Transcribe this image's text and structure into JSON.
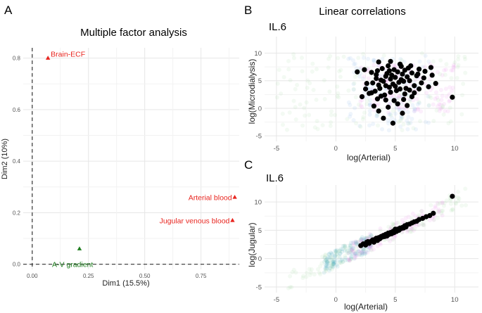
{
  "panel_labels": {
    "a": "A",
    "b": "B",
    "c": "C"
  },
  "colors": {
    "red": "#e8251f",
    "green": "#1e7d1e",
    "black": "#000000",
    "grid": "#e6e6e6",
    "blue_cloud": "#7fb0e6",
    "pink_cloud": "#e37be3",
    "green_cloud": "#9fd39a",
    "teal_cloud": "#39a5b5"
  },
  "chart_data": [
    {
      "type": "scatter",
      "title": "Multiple factor analysis",
      "xlabel": "Dim1 (15.5%)",
      "ylabel": "Dim2 (10%)",
      "xlim": [
        -0.04,
        0.92
      ],
      "ylim": [
        -0.02,
        0.84
      ],
      "xticks": [
        0.0,
        0.25,
        0.5,
        0.75
      ],
      "xtick_labels": [
        "0.00",
        "0.25",
        "0.50",
        "0.75"
      ],
      "yticks": [
        0.0,
        0.2,
        0.4,
        0.6,
        0.8
      ],
      "ytick_labels": [
        "0.0",
        "0.2",
        "0.4",
        "0.6",
        "0.8"
      ],
      "reference_lines": {
        "x": 0,
        "y": 0,
        "style": "dashed"
      },
      "grid": true,
      "marker": "triangle",
      "points": [
        {
          "label": "Brain-ECF",
          "x": 0.07,
          "y": 0.8,
          "color": "#e8251f",
          "label_side": "right"
        },
        {
          "label": "Arterial blood",
          "x": 0.9,
          "y": 0.26,
          "color": "#e8251f",
          "label_side": "left"
        },
        {
          "label": "Jugular venous blood",
          "x": 0.89,
          "y": 0.17,
          "color": "#e8251f",
          "label_side": "left"
        },
        {
          "label": "A-V gradient",
          "x": 0.21,
          "y": 0.06,
          "color": "#1e7d1e",
          "label_side": "below"
        }
      ]
    },
    {
      "type": "scatter",
      "title": "Linear correlations",
      "subtitle": "IL.6",
      "xlabel": "log(Arterial)",
      "ylabel": "log(Microdialysis)",
      "xlim": [
        -6,
        12
      ],
      "ylim": [
        -6,
        13
      ],
      "xticks": [
        -5,
        0,
        5,
        10
      ],
      "yticks": [
        -5,
        0,
        5,
        10
      ],
      "grid": true,
      "series": [
        {
          "color": "#000000",
          "values": [
            [
              2.5,
              3.5
            ],
            [
              2.8,
              2.7
            ],
            [
              3.0,
              6.5
            ],
            [
              3.1,
              4.6
            ],
            [
              3.3,
              3.1
            ],
            [
              3.4,
              5.4
            ],
            [
              3.5,
              6.8
            ],
            [
              3.6,
              4.2
            ],
            [
              3.7,
              3.6
            ],
            [
              3.8,
              5.1
            ],
            [
              3.9,
              7.2
            ],
            [
              4.0,
              4.9
            ],
            [
              4.1,
              2.4
            ],
            [
              4.2,
              5.8
            ],
            [
              4.3,
              6.3
            ],
            [
              4.4,
              7.7
            ],
            [
              4.5,
              3.8
            ],
            [
              4.6,
              5.3
            ],
            [
              4.7,
              6.0
            ],
            [
              4.8,
              4.4
            ],
            [
              4.9,
              7.0
            ],
            [
              5.0,
              5.6
            ],
            [
              5.1,
              3.2
            ],
            [
              5.2,
              6.6
            ],
            [
              5.3,
              4.7
            ],
            [
              5.4,
              8.0
            ],
            [
              5.5,
              5.2
            ],
            [
              5.6,
              6.2
            ],
            [
              5.7,
              4.9
            ],
            [
              5.8,
              6.9
            ],
            [
              5.9,
              3.6
            ],
            [
              6.0,
              5.7
            ],
            [
              6.1,
              7.3
            ],
            [
              6.2,
              5.0
            ],
            [
              6.4,
              6.4
            ],
            [
              6.6,
              4.1
            ],
            [
              6.8,
              5.9
            ],
            [
              7.0,
              7.1
            ],
            [
              7.2,
              4.6
            ],
            [
              7.5,
              6.7
            ],
            [
              7.8,
              3.9
            ],
            [
              8.1,
              6.0
            ],
            [
              8.4,
              4.5
            ],
            [
              9.8,
              2.0
            ],
            [
              3.2,
              0.4
            ],
            [
              3.6,
              -0.5
            ],
            [
              4.0,
              -1.8
            ],
            [
              4.4,
              0.2
            ],
            [
              4.8,
              -2.7
            ],
            [
              5.2,
              0.8
            ],
            [
              5.6,
              -0.9
            ],
            [
              6.0,
              0.5
            ],
            [
              2.2,
              2.1
            ],
            [
              2.6,
              4.5
            ],
            [
              3.0,
              2.8
            ],
            [
              3.4,
              6.1
            ],
            [
              3.8,
              2.2
            ],
            [
              4.2,
              4.1
            ],
            [
              4.6,
              2.9
            ],
            [
              5.0,
              4.0
            ],
            [
              5.4,
              3.5
            ],
            [
              5.8,
              2.6
            ],
            [
              6.2,
              3.3
            ],
            [
              6.6,
              2.8
            ],
            [
              7.0,
              3.5
            ],
            [
              1.8,
              6.6
            ],
            [
              2.4,
              7.0
            ],
            [
              3.6,
              8.4
            ],
            [
              4.6,
              8.5
            ],
            [
              5.5,
              7.6
            ],
            [
              6.3,
              7.7
            ],
            [
              6.9,
              6.2
            ],
            [
              7.4,
              5.5
            ],
            [
              8.0,
              7.4
            ],
            [
              4.2,
              1.5
            ],
            [
              4.9,
              1.4
            ],
            [
              5.7,
              1.6
            ],
            [
              6.4,
              2.1
            ],
            [
              3.5,
              1.7
            ],
            [
              4.5,
              6.8
            ]
          ]
        }
      ],
      "background_clouds": [
        {
          "color": "#7fb0e6",
          "x": [
            1,
            8
          ],
          "y": [
            -4,
            10
          ]
        },
        {
          "color": "#e37be3",
          "x": [
            2,
            10
          ],
          "y": [
            -1,
            8
          ]
        },
        {
          "color": "#9fd39a",
          "x": [
            -5,
            11
          ],
          "y": [
            -4,
            10
          ]
        }
      ]
    },
    {
      "type": "scatter",
      "title": "",
      "subtitle": "IL.6",
      "xlabel": "log(Arterial)",
      "ylabel": "log(Jugular)",
      "xlim": [
        -6,
        12
      ],
      "ylim": [
        -6,
        13
      ],
      "xticks": [
        -5,
        0,
        5,
        10
      ],
      "yticks": [
        -5,
        0,
        5,
        10
      ],
      "grid": true,
      "series": [
        {
          "color": "#000000",
          "values": [
            [
              2.1,
              2.3
            ],
            [
              2.3,
              2.6
            ],
            [
              2.5,
              2.4
            ],
            [
              2.6,
              2.9
            ],
            [
              2.8,
              2.7
            ],
            [
              3.0,
              3.1
            ],
            [
              3.1,
              3.3
            ],
            [
              3.2,
              2.9
            ],
            [
              3.3,
              3.4
            ],
            [
              3.4,
              3.6
            ],
            [
              3.5,
              3.2
            ],
            [
              3.6,
              3.7
            ],
            [
              3.7,
              3.5
            ],
            [
              3.8,
              3.9
            ],
            [
              3.9,
              3.8
            ],
            [
              4.0,
              4.1
            ],
            [
              4.1,
              3.9
            ],
            [
              4.2,
              4.3
            ],
            [
              4.3,
              4.0
            ],
            [
              4.4,
              4.5
            ],
            [
              4.5,
              4.3
            ],
            [
              4.6,
              4.6
            ],
            [
              4.7,
              4.4
            ],
            [
              4.8,
              4.8
            ],
            [
              4.9,
              4.6
            ],
            [
              5.0,
              5.0
            ],
            [
              5.1,
              4.8
            ],
            [
              5.2,
              5.2
            ],
            [
              5.3,
              5.0
            ],
            [
              5.4,
              5.4
            ],
            [
              5.5,
              5.3
            ],
            [
              5.6,
              5.5
            ],
            [
              5.7,
              5.4
            ],
            [
              5.8,
              5.8
            ],
            [
              5.9,
              5.6
            ],
            [
              6.0,
              6.0
            ],
            [
              6.2,
              6.1
            ],
            [
              6.4,
              6.3
            ],
            [
              6.6,
              6.5
            ],
            [
              6.8,
              6.6
            ],
            [
              7.0,
              6.9
            ],
            [
              7.3,
              7.1
            ],
            [
              7.6,
              7.4
            ],
            [
              7.9,
              7.6
            ],
            [
              8.2,
              8.0
            ],
            [
              9.8,
              11.0
            ],
            [
              2.7,
              3.0
            ],
            [
              3.5,
              3.4
            ],
            [
              4.4,
              4.2
            ],
            [
              5.0,
              5.2
            ]
          ]
        }
      ],
      "background_clouds": [
        {
          "color": "#39a5b5",
          "x": [
            -1,
            3
          ],
          "y": [
            -1,
            3
          ]
        },
        {
          "color": "#e37be3",
          "x": [
            1,
            9
          ],
          "y": [
            1,
            9
          ]
        },
        {
          "color": "#9fd39a",
          "x": [
            -4,
            11
          ],
          "y": [
            -4,
            11
          ]
        }
      ]
    }
  ]
}
